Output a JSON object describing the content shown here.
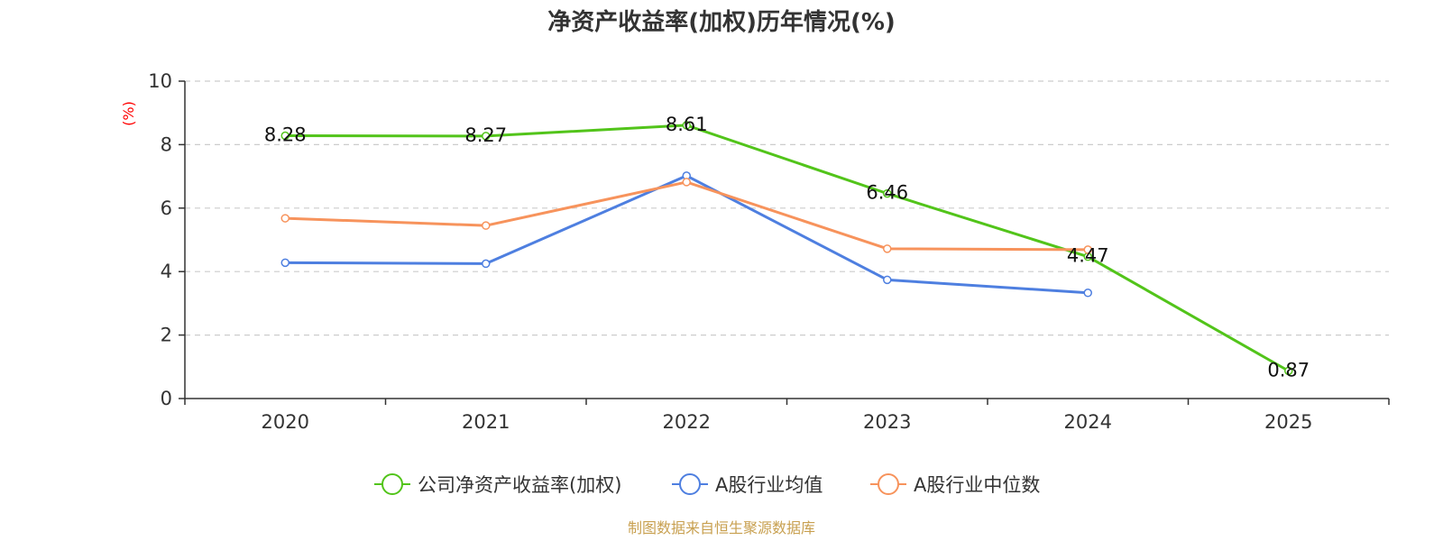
{
  "chart_data": {
    "type": "line",
    "title": "净资产收益率(加权)历年情况(%)",
    "ylabel": "(%)",
    "xlabel": "",
    "categories": [
      "2020",
      "2021",
      "2022",
      "2023",
      "2024",
      "2025"
    ],
    "ylim": [
      0,
      10
    ],
    "yticks": [
      "0",
      "2",
      "4",
      "6",
      "8",
      "10"
    ],
    "grid": true,
    "legend_position": "bottom-center",
    "series": [
      {
        "name": "公司净资产收益率(加权)",
        "color": "#52c41a",
        "values": [
          8.28,
          8.27,
          8.61,
          6.46,
          4.47,
          0.87
        ],
        "labels": [
          "8.28",
          "8.27",
          "8.61",
          "6.46",
          "4.47",
          "0.87"
        ]
      },
      {
        "name": "A股行业均值",
        "color": "#4e7fe0",
        "values": [
          4.28,
          4.25,
          7.02,
          3.74,
          3.33,
          null
        ]
      },
      {
        "name": "A股行业中位数",
        "color": "#f7935c",
        "values": [
          5.68,
          5.45,
          6.82,
          4.72,
          4.69,
          null
        ]
      }
    ]
  },
  "source": "制图数据来自恒生聚源数据库",
  "colors": {
    "ylabel": "#ff0000",
    "source": "#c8a050",
    "axis": "#333333",
    "grid": "#cccccc"
  }
}
